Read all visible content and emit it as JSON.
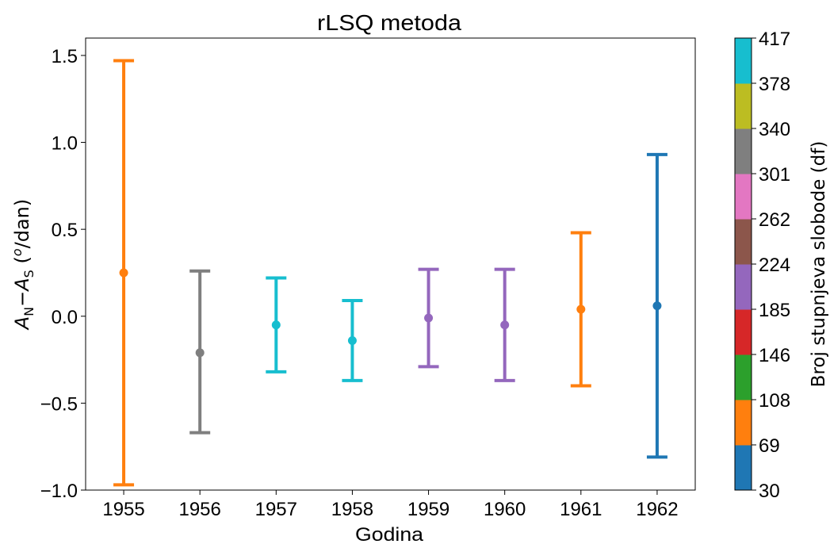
{
  "chart_data": {
    "type": "errorbar",
    "title": "rLSQ metoda",
    "xlabel": "Godina",
    "ylabel_parts": {
      "a": "A",
      "sub_n": "N",
      "minus": "−",
      "sub_s": "S",
      "unit_open": " (",
      "unit_sup": "o",
      "unit_rest": "/dan)"
    },
    "xlim": [
      1954.5,
      1962.5
    ],
    "ylim": [
      -1.0,
      1.6
    ],
    "x_ticks": [
      1955,
      1956,
      1957,
      1958,
      1959,
      1960,
      1961,
      1962
    ],
    "x_tick_labels": [
      "1955",
      "1956",
      "1957",
      "1958",
      "1959",
      "1960",
      "1961",
      "1962"
    ],
    "y_ticks": [
      -1.0,
      -0.5,
      0.0,
      0.5,
      1.0,
      1.5
    ],
    "y_tick_labels": [
      "−1.0",
      "−0.5",
      "0.0",
      "0.5",
      "1.0",
      "1.5"
    ],
    "grid": true,
    "points": [
      {
        "x": 1955,
        "y": 0.25,
        "lower": -0.97,
        "upper": 1.47,
        "color": "#ff7f0e"
      },
      {
        "x": 1956,
        "y": -0.21,
        "lower": -0.67,
        "upper": 0.26,
        "color": "#7f7f7f"
      },
      {
        "x": 1957,
        "y": -0.05,
        "lower": -0.32,
        "upper": 0.22,
        "color": "#17becf"
      },
      {
        "x": 1958,
        "y": -0.14,
        "lower": -0.37,
        "upper": 0.09,
        "color": "#17becf"
      },
      {
        "x": 1959,
        "y": -0.01,
        "lower": -0.29,
        "upper": 0.27,
        "color": "#9467bd"
      },
      {
        "x": 1960,
        "y": -0.05,
        "lower": -0.37,
        "upper": 0.27,
        "color": "#9467bd"
      },
      {
        "x": 1961,
        "y": 0.04,
        "lower": -0.4,
        "upper": 0.48,
        "color": "#ff7f0e"
      },
      {
        "x": 1962,
        "y": 0.06,
        "lower": -0.81,
        "upper": 0.93,
        "color": "#1f77b4"
      }
    ],
    "colorbar": {
      "label": "Broj stupnjeva slobode (df)",
      "range": [
        30,
        417
      ],
      "tick_labels": [
        "30",
        "69",
        "108",
        "146",
        "185",
        "224",
        "262",
        "301",
        "340",
        "378",
        "417"
      ],
      "colors": [
        "#1f77b4",
        "#ff7f0e",
        "#2ca02c",
        "#d62728",
        "#9467bd",
        "#8c564b",
        "#e377c2",
        "#7f7f7f",
        "#bcbd22",
        "#17becf"
      ]
    }
  }
}
